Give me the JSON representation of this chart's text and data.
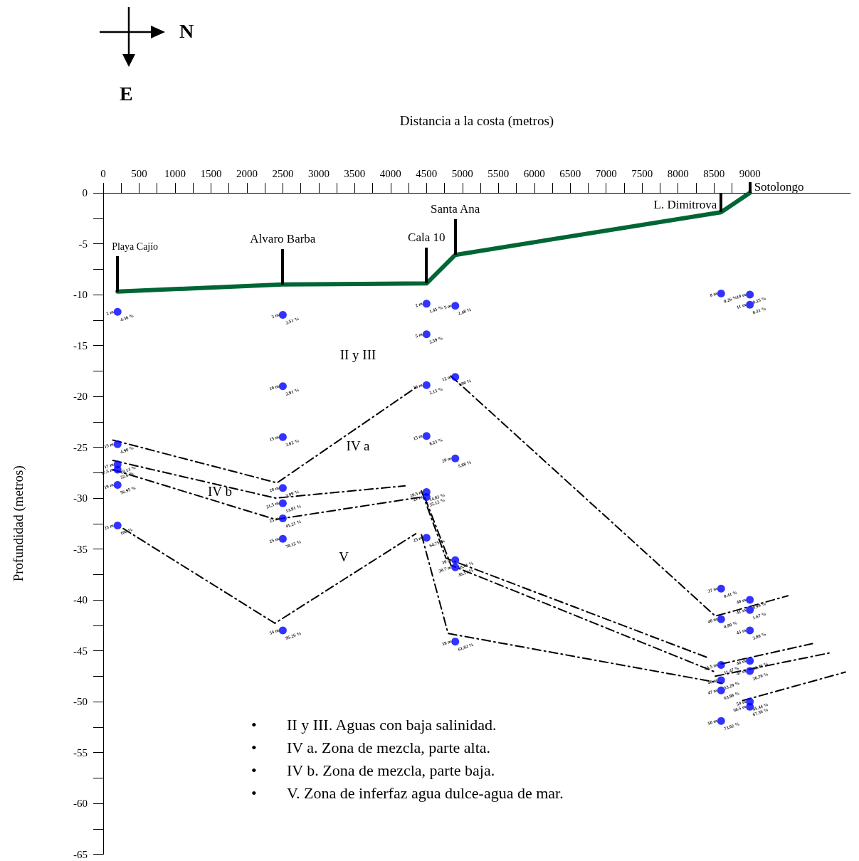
{
  "chart_data": {
    "type": "scatter",
    "xlabel": "Distancia a la costa (metros)",
    "ylabel": "Profundidad (metros)",
    "marker": "circle",
    "xlim": [
      0,
      10400
    ],
    "ylim": [
      -65,
      0
    ],
    "xticks": [
      0,
      {
        "value": 250,
        "label": null
      },
      500,
      {
        "value": 750,
        "label": null
      },
      1000,
      {
        "value": 1250,
        "label": null
      },
      1500,
      {
        "value": 1750,
        "label": null
      },
      2000,
      {
        "value": 2250,
        "label": null
      },
      2500,
      {
        "value": 2750,
        "label": null
      },
      3000,
      {
        "value": 3250,
        "label": null
      },
      3500,
      {
        "value": 3750,
        "label": null
      },
      4000,
      {
        "value": 4250,
        "label": null
      },
      4500,
      {
        "value": 4750,
        "label": null
      },
      5000,
      {
        "value": 5250,
        "label": null
      },
      5500,
      {
        "value": 5750,
        "label": null
      },
      6000,
      {
        "value": 6250,
        "label": null
      },
      6500,
      {
        "value": 6750,
        "label": null
      },
      7000,
      {
        "value": 7250,
        "label": null
      },
      7500,
      {
        "value": 7750,
        "label": null
      },
      8000,
      {
        "value": 8250,
        "label": null
      },
      8500,
      {
        "value": 8750,
        "label": null
      },
      9000
    ],
    "yticks": [
      -65,
      {
        "value": -62.5,
        "label": null
      },
      -60,
      {
        "value": -57.5,
        "label": null
      },
      -55,
      {
        "value": -52.5,
        "label": null
      },
      -50,
      {
        "value": -47.5,
        "label": null
      },
      -45,
      {
        "value": -42.5,
        "label": null
      },
      -40,
      {
        "value": -37.5,
        "label": null
      },
      -35,
      {
        "value": -32.5,
        "label": null
      },
      -30,
      {
        "value": -27.5,
        "label": null
      },
      -25,
      {
        "value": -22.5,
        "label": null
      },
      -20,
      {
        "value": -17.5,
        "label": null
      },
      -15,
      {
        "value": -12.5,
        "label": null
      },
      -10,
      {
        "value": -7.5,
        "label": null
      },
      -5,
      {
        "value": -2.5,
        "label": null
      },
      0
    ],
    "series": [
      {
        "type": "line",
        "marker": "none",
        "line_style": "solid",
        "color": "#006633",
        "x": [
          200,
          2500,
          4500,
          4900,
          8600,
          9000
        ],
        "values": [
          -9.7,
          -9.0,
          -8.9,
          -6.1,
          -1.9,
          0
        ]
      },
      {
        "type": "line",
        "marker": "none",
        "line_style": "dashed",
        "color": "#000000",
        "x": [
          135,
          2420,
          4380
        ],
        "values": [
          -24.3,
          -28.5,
          -19.0
        ]
      },
      {
        "type": "line",
        "marker": "none",
        "line_style": "dashed",
        "color": "#000000",
        "x": [
          4840,
          8520,
          9530
        ],
        "values": [
          -18.0,
          -41.6,
          -39.6
        ]
      },
      {
        "type": "line",
        "marker": "none",
        "line_style": "dashed",
        "color": "#000000",
        "x": [
          135,
          2400,
          4200
        ],
        "values": [
          -26.3,
          -30.0,
          -28.8
        ]
      },
      {
        "type": "line",
        "marker": "none",
        "line_style": "dashed",
        "color": "#000000",
        "x": [
          4430,
          4770,
          8420
        ],
        "values": [
          -29.3,
          -35.9,
          -45.7
        ]
      },
      {
        "type": "line",
        "marker": "none",
        "line_style": "dashed",
        "color": "#000000",
        "x": [
          8600,
          9870
        ],
        "values": [
          -46.3,
          -44.3
        ]
      },
      {
        "type": "line",
        "marker": "none",
        "line_style": "dashed",
        "color": "#000000",
        "x": [
          135,
          2400,
          4430
        ],
        "values": [
          -27.2,
          -32.1,
          -29.9
        ]
      },
      {
        "type": "line",
        "marker": "none",
        "line_style": "dashed",
        "color": "#000000",
        "x": [
          4480,
          4840,
          8520
        ],
        "values": [
          -30.0,
          -36.6,
          -47.1
        ]
      },
      {
        "type": "line",
        "marker": "none",
        "line_style": "dashed",
        "color": "#000000",
        "x": [
          8520,
          10120
        ],
        "values": [
          -47.5,
          -45.2
        ]
      },
      {
        "type": "line",
        "marker": "none",
        "line_style": "dashed",
        "color": "#000000",
        "x": [
          280,
          2390,
          4350
        ],
        "values": [
          -33.0,
          -42.3,
          -33.5
        ]
      },
      {
        "type": "line",
        "marker": "none",
        "line_style": "dashed",
        "color": "#000000",
        "x": [
          4430,
          4800,
          8610
        ],
        "values": [
          -33.6,
          -43.3,
          -48.2
        ]
      },
      {
        "type": "line",
        "marker": "none",
        "line_style": "dashed",
        "color": "#000000",
        "x": [
          8900,
          10330
        ],
        "values": [
          -49.9,
          -47.1
        ]
      },
      {
        "color": "#0000ff",
        "x": [
          200,
          200,
          200,
          200,
          200,
          200
        ],
        "values": [
          -11.7,
          -24.7,
          -26.7,
          -27.2,
          -28.7,
          -32.7
        ]
      },
      {
        "color": "#0000ff",
        "x": [
          2500,
          2500,
          2500,
          2500,
          2500,
          2500,
          2500,
          2500
        ],
        "values": [
          -12,
          -19,
          -24,
          -29,
          -30.5,
          -32,
          -34,
          -43
        ]
      },
      {
        "color": "#0000ff",
        "x": [
          4500,
          4500,
          4500,
          4500,
          4500,
          4500,
          4500
        ],
        "values": [
          -10.9,
          -13.9,
          -18.9,
          -23.9,
          -29.4,
          -29.9,
          -33.9
        ]
      },
      {
        "color": "#0000ff",
        "x": [
          4900,
          4900,
          4900,
          4900,
          4900,
          4900
        ],
        "values": [
          -11.1,
          -18.1,
          -26.1,
          -36.1,
          -36.8,
          -44.1
        ]
      },
      {
        "color": "#0000ff",
        "x": [
          8600,
          8600,
          8600,
          8600,
          8600,
          8600,
          8600
        ],
        "values": [
          -9.9,
          -38.9,
          -41.9,
          -46.4,
          -47.9,
          -48.9,
          -51.9
        ]
      },
      {
        "color": "#0000ff",
        "x": [
          9000,
          9000,
          9000,
          9000,
          9000,
          9000,
          9000,
          9000,
          9000
        ],
        "values": [
          -10,
          -11,
          -40,
          -41,
          -43,
          -46,
          -47,
          -50,
          -50.5
        ]
      }
    ],
    "annotations": [
      "Playa Cajío",
      "Alvaro Barba",
      "Cala 10",
      "Santa Ana",
      "L. Dimitrova",
      "Sotolongo",
      "II y III",
      "IV a",
      "IV b",
      "V",
      "N",
      "E",
      "• II y III. Aguas con baja salinidad.",
      "• IV a. Zona de mezcla, parte alta.",
      "• IV b. Zona de mezcla, parte baja.",
      "• V. Zona de inferfaz agua dulce-agua de mar.",
      {
        "text": "2 m",
        "x": 200,
        "y": -11.7
      },
      {
        "text": "4.36 %",
        "x": 200,
        "y": -11.7
      },
      {
        "text": "15 m",
        "x": 200,
        "y": -24.7
      },
      {
        "text": "4.98 %",
        "x": 200,
        "y": -24.7
      },
      {
        "text": "17 m",
        "x": 200,
        "y": -26.7
      },
      {
        "text": "10.13 %",
        "x": 200,
        "y": -26.7
      },
      {
        "text": "17.5 m",
        "x": 200,
        "y": -27.2
      },
      {
        "text": "32.6 %",
        "x": 200,
        "y": -27.2
      },
      {
        "text": "19 m",
        "x": 200,
        "y": -28.7
      },
      {
        "text": "56.95 %",
        "x": 200,
        "y": -28.7
      },
      {
        "text": "23 m",
        "x": 200,
        "y": -32.7
      },
      {
        "text": "100 %",
        "x": 200,
        "y": -32.7
      },
      {
        "text": "3 m",
        "x": 2500,
        "y": -12
      },
      {
        "text": "2.51 %",
        "x": 2500,
        "y": -12
      },
      {
        "text": "10 m",
        "x": 2500,
        "y": -19
      },
      {
        "text": "2.91 %",
        "x": 2500,
        "y": -19
      },
      {
        "text": "15 m",
        "x": 2500,
        "y": -24
      },
      {
        "text": "3.02 %",
        "x": 2500,
        "y": -24
      },
      {
        "text": "20 m",
        "x": 2500,
        "y": -29
      },
      {
        "text": "3.99 %",
        "x": 2500,
        "y": -29
      },
      {
        "text": "21.5 m",
        "x": 2500,
        "y": -30.5
      },
      {
        "text": "13.91 %",
        "x": 2500,
        "y": -30.5
      },
      {
        "text": "23 m",
        "x": 2500,
        "y": -32
      },
      {
        "text": "41.21 %",
        "x": 2500,
        "y": -32
      },
      {
        "text": "25 m",
        "x": 2500,
        "y": -34
      },
      {
        "text": "70.12 %",
        "x": 2500,
        "y": -34
      },
      {
        "text": "34 m",
        "x": 2500,
        "y": -43
      },
      {
        "text": "95.26 %",
        "x": 2500,
        "y": -43
      },
      {
        "text": "2 m",
        "x": 4500,
        "y": -10.9
      },
      {
        "text": "1.45 %",
        "x": 4500,
        "y": -10.9
      },
      {
        "text": "5 m",
        "x": 4500,
        "y": -13.9
      },
      {
        "text": "2.59 %",
        "x": 4500,
        "y": -13.9
      },
      {
        "text": "10 m",
        "x": 4500,
        "y": -18.9
      },
      {
        "text": "2.13 %",
        "x": 4500,
        "y": -18.9
      },
      {
        "text": "15 m",
        "x": 4500,
        "y": -23.9
      },
      {
        "text": "8.23 %",
        "x": 4500,
        "y": -23.9
      },
      {
        "text": "20.5 m",
        "x": 4500,
        "y": -29.4
      },
      {
        "text": "14.83 %",
        "x": 4500,
        "y": -29.4
      },
      {
        "text": "21 m",
        "x": 4500,
        "y": -29.9
      },
      {
        "text": "35.12 %",
        "x": 4500,
        "y": -29.9
      },
      {
        "text": "25 m",
        "x": 4500,
        "y": -33.9
      },
      {
        "text": "64.75 %",
        "x": 4500,
        "y": -33.9
      },
      {
        "text": "5 m",
        "x": 4900,
        "y": -11.1
      },
      {
        "text": "2.48 %",
        "x": 4900,
        "y": -11.1
      },
      {
        "text": "12 m",
        "x": 4900,
        "y": -18.1
      },
      {
        "text": "3.90 %",
        "x": 4900,
        "y": -18.1
      },
      {
        "text": "20 m",
        "x": 4900,
        "y": -26.1
      },
      {
        "text": "5.88 %",
        "x": 4900,
        "y": -26.1
      },
      {
        "text": "30 m",
        "x": 4900,
        "y": -36.1
      },
      {
        "text": "10.41 %",
        "x": 4900,
        "y": -36.1
      },
      {
        "text": "30.7 m",
        "x": 4900,
        "y": -36.8
      },
      {
        "text": "30.17 %",
        "x": 4900,
        "y": -36.8
      },
      {
        "text": "38 m",
        "x": 4900,
        "y": -44.1
      },
      {
        "text": "61.02 %",
        "x": 4900,
        "y": -44.1
      },
      {
        "text": "8 m",
        "x": 8600,
        "y": -9.9
      },
      {
        "text": "0.26 %",
        "x": 8600,
        "y": -9.9
      },
      {
        "text": "37 m",
        "x": 8600,
        "y": -38.9
      },
      {
        "text": "0.41 %",
        "x": 8600,
        "y": -38.9
      },
      {
        "text": "40 m",
        "x": 8600,
        "y": -41.9
      },
      {
        "text": "0.80 %",
        "x": 8600,
        "y": -41.9
      },
      {
        "text": "44.5 m",
        "x": 8600,
        "y": -46.4
      },
      {
        "text": "11.47 %",
        "x": 8600,
        "y": -46.4
      },
      {
        "text": "46 m",
        "x": 8600,
        "y": -47.9
      },
      {
        "text": "33.29 %",
        "x": 8600,
        "y": -47.9
      },
      {
        "text": "47 m",
        "x": 8600,
        "y": -48.9
      },
      {
        "text": "63.98 %",
        "x": 8600,
        "y": -48.9
      },
      {
        "text": "50 m",
        "x": 8600,
        "y": -51.9
      },
      {
        "text": "73.02 %",
        "x": 8600,
        "y": -51.9
      },
      {
        "text": "10 m",
        "x": 9000,
        "y": -10
      },
      {
        "text": "0.35 %",
        "x": 9000,
        "y": -10
      },
      {
        "text": "11 m",
        "x": 9000,
        "y": -11
      },
      {
        "text": "0.31 %",
        "x": 9000,
        "y": -11
      },
      {
        "text": "40 m",
        "x": 9000,
        "y": -40
      },
      {
        "text": "0.99 %",
        "x": 9000,
        "y": -40
      },
      {
        "text": "41 m",
        "x": 9000,
        "y": -41
      },
      {
        "text": "1.67 %",
        "x": 9000,
        "y": -41
      },
      {
        "text": "43 m",
        "x": 9000,
        "y": -43
      },
      {
        "text": "3.80 %",
        "x": 9000,
        "y": -43
      },
      {
        "text": "46 m",
        "x": 9000,
        "y": -46
      },
      {
        "text": "23.46 %",
        "x": 9000,
        "y": -46
      },
      {
        "text": "47 m",
        "x": 9000,
        "y": -47
      },
      {
        "text": "36.70 %",
        "x": 9000,
        "y": -47
      },
      {
        "text": "50 m",
        "x": 9000,
        "y": -50
      },
      {
        "text": "45.44 %",
        "x": 9000,
        "y": -50
      },
      {
        "text": "50.5 m",
        "x": 9000,
        "y": -50.5
      },
      {
        "text": "67.36 %",
        "x": 9000,
        "y": -50.5
      }
    ]
  }
}
